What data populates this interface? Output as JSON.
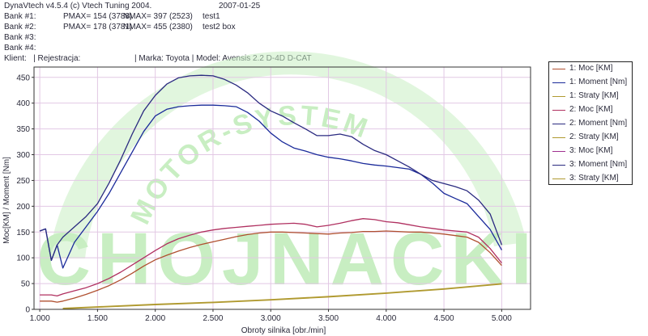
{
  "header": {
    "line1_left": "DynaVtech v4.5.4 (c) Vtech Tuning 2004.",
    "line1_date": "2007-01-25",
    "bank1": {
      "label": "Bank #1:",
      "pmax": "PMAX= 154 (3788)",
      "nmax": "NMAX= 397 (2523)",
      "name": "test1"
    },
    "bank2": {
      "label": "Bank #2:",
      "pmax": "PMAX= 178 (3781)",
      "nmax": "NMAX= 455 (2380)",
      "name": "test2 box"
    },
    "bank3": {
      "label": "Bank #3:"
    },
    "bank4": {
      "label": "Bank #4:"
    },
    "client_line": "Klient:   | Rejestracja:                        | Marka: Toyota | Model: Avensis 2.2 D-4D D-CAT"
  },
  "watermark": {
    "arc_text": "MOTOR-SYSTEM",
    "main_text": "CHOJNACKI",
    "color": "#c8eec2"
  },
  "legend": [
    {
      "label": "1: Moc [KM]",
      "color": "#b05030"
    },
    {
      "label": "1: Moment [Nm]",
      "color": "#1a2a9a"
    },
    {
      "label": "1: Straty [KM]",
      "color": "#b09a30"
    },
    {
      "label": "2: Moc [KM]",
      "color": "#b03060"
    },
    {
      "label": "2: Moment [Nm]",
      "color": "#2a2a80"
    },
    {
      "label": "2: Straty [KM]",
      "color": "#b09a30"
    },
    {
      "label": "3: Moc [KM]",
      "color": "#a03090"
    },
    {
      "label": "3: Moment [Nm]",
      "color": "#2a2a80"
    },
    {
      "label": "3: Straty [KM]",
      "color": "#b09a30"
    }
  ],
  "chart_data": {
    "type": "line",
    "xlabel": "Obroty silnika [obr./min]",
    "ylabel": "Moc[KM] / Moment [Nm]",
    "xlim": [
      950,
      5250
    ],
    "ylim": [
      0,
      470
    ],
    "x_ticks": [
      1000,
      1500,
      2000,
      2500,
      3000,
      3500,
      4000,
      4500,
      5000
    ],
    "x_tick_labels": [
      "1.000",
      "1.500",
      "2.000",
      "2.500",
      "3.000",
      "3.500",
      "4.000",
      "4.500",
      "5.000"
    ],
    "y_ticks": [
      0,
      50,
      100,
      150,
      200,
      250,
      300,
      350,
      400,
      450
    ],
    "y_tick_labels": [
      "0",
      "50",
      "100",
      "150",
      "200",
      "250",
      "300",
      "350",
      "400",
      "450"
    ],
    "grid": true,
    "series": [
      {
        "name": "1: Moment [Nm]",
        "color": "#1a2a9a",
        "x": [
          1000,
          1050,
          1100,
          1150,
          1200,
          1300,
          1400,
          1500,
          1600,
          1700,
          1800,
          1900,
          2000,
          2100,
          2200,
          2300,
          2400,
          2500,
          2600,
          2700,
          2800,
          2900,
          3000,
          3100,
          3200,
          3300,
          3400,
          3500,
          3600,
          3700,
          3800,
          3900,
          4000,
          4100,
          4200,
          4300,
          4400,
          4500,
          4600,
          4700,
          4800,
          4900,
          5000
        ],
        "y": [
          152,
          156,
          95,
          125,
          80,
          130,
          160,
          190,
          225,
          265,
          305,
          345,
          375,
          388,
          393,
          395,
          396,
          396,
          395,
          393,
          382,
          365,
          342,
          325,
          313,
          307,
          300,
          295,
          292,
          288,
          283,
          280,
          278,
          275,
          272,
          262,
          245,
          225,
          215,
          205,
          180,
          155,
          115
        ]
      },
      {
        "name": "2: Moment [Nm]",
        "color": "#2a2a80",
        "x": [
          1000,
          1050,
          1100,
          1150,
          1200,
          1300,
          1400,
          1500,
          1600,
          1700,
          1800,
          1900,
          2000,
          2100,
          2200,
          2300,
          2400,
          2500,
          2600,
          2700,
          2800,
          2900,
          3000,
          3100,
          3200,
          3300,
          3400,
          3500,
          3600,
          3700,
          3800,
          3900,
          4000,
          4100,
          4200,
          4300,
          4400,
          4500,
          4600,
          4700,
          4800,
          4900,
          5000
        ],
        "y": [
          152,
          156,
          95,
          125,
          140,
          160,
          180,
          205,
          245,
          290,
          340,
          385,
          415,
          437,
          449,
          453,
          454,
          453,
          446,
          435,
          420,
          400,
          385,
          375,
          362,
          350,
          337,
          337,
          340,
          335,
          320,
          308,
          300,
          288,
          276,
          262,
          250,
          244,
          238,
          230,
          212,
          185,
          125
        ]
      },
      {
        "name": "1: Moc [KM]",
        "color": "#b05030",
        "x": [
          1000,
          1100,
          1150,
          1200,
          1300,
          1400,
          1500,
          1600,
          1700,
          1800,
          1900,
          2000,
          2100,
          2200,
          2300,
          2400,
          2500,
          2600,
          2700,
          2800,
          2900,
          3000,
          3100,
          3200,
          3300,
          3400,
          3500,
          3600,
          3700,
          3800,
          3900,
          4000,
          4100,
          4200,
          4300,
          4400,
          4500,
          4600,
          4700,
          4800,
          4900,
          5000
        ],
        "y": [
          16,
          16,
          14,
          16,
          22,
          29,
          37,
          46,
          57,
          70,
          84,
          96,
          105,
          113,
          120,
          126,
          131,
          136,
          141,
          145,
          148,
          150,
          150,
          149,
          148,
          147,
          146,
          148,
          149,
          151,
          151,
          152,
          151,
          150,
          150,
          148,
          146,
          143,
          140,
          130,
          110,
          85
        ]
      },
      {
        "name": "2: Moc [KM]",
        "color": "#b03060",
        "x": [
          1000,
          1100,
          1150,
          1200,
          1300,
          1400,
          1500,
          1600,
          1700,
          1800,
          1900,
          2000,
          2100,
          2200,
          2300,
          2400,
          2500,
          2600,
          2700,
          2800,
          2900,
          3000,
          3100,
          3200,
          3300,
          3400,
          3500,
          3600,
          3700,
          3800,
          3900,
          4000,
          4100,
          4200,
          4300,
          4400,
          4500,
          4600,
          4700,
          4800,
          4900,
          5000
        ],
        "y": [
          28,
          28,
          26,
          30,
          36,
          42,
          50,
          60,
          72,
          86,
          100,
          114,
          127,
          137,
          144,
          150,
          154,
          157,
          159,
          161,
          163,
          165,
          166,
          167,
          165,
          160,
          163,
          167,
          172,
          176,
          174,
          170,
          168,
          164,
          160,
          157,
          154,
          152,
          150,
          140,
          118,
          90
        ]
      },
      {
        "name": "1: Straty [KM]",
        "color": "#b09a30",
        "x": [
          1200,
          1500,
          2000,
          2500,
          3000,
          3500,
          4000,
          4500,
          5000
        ],
        "y": [
          2,
          5,
          10,
          14,
          19,
          25,
          32,
          40,
          50
        ]
      },
      {
        "name": "2: Straty [KM]",
        "color": "#b09a30",
        "x": [
          1200,
          1500,
          2000,
          2500,
          3000,
          3500,
          4000,
          4500,
          5000
        ],
        "y": [
          1,
          4,
          9,
          13,
          18,
          24,
          31,
          39,
          49
        ]
      }
    ]
  }
}
